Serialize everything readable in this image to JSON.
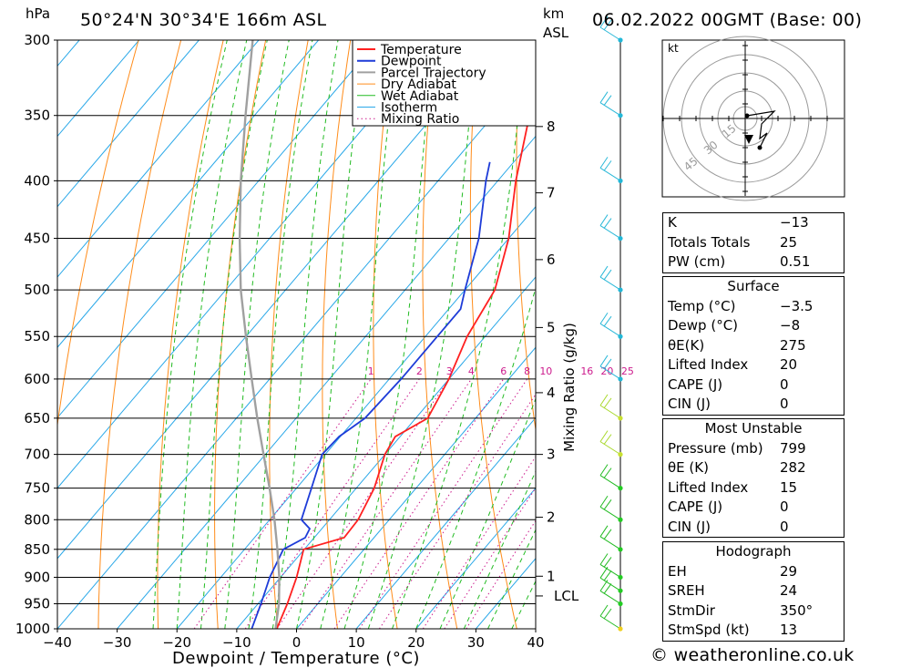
{
  "header": {
    "unit_left": "hPa",
    "location": "50°24'N 30°34'E 166m ASL",
    "unit_km": "km",
    "unit_asl": "ASL",
    "datetime": "06.02.2022 00GMT (Base: 00)"
  },
  "footer": "© weatheronline.co.uk",
  "chart_data": {
    "type": "line",
    "xlabel": "Dewpoint / Temperature (°C)",
    "ylabel": "hPa",
    "xlim": [
      -40,
      40
    ],
    "ylim": [
      1000,
      300
    ],
    "x_ticks": [
      "−40",
      "−30",
      "−20",
      "−10",
      "0",
      "10",
      "20",
      "30",
      "40"
    ],
    "pressure_levels": [
      300,
      350,
      400,
      450,
      500,
      550,
      600,
      650,
      700,
      750,
      800,
      850,
      900,
      950,
      1000
    ],
    "km_ticks": [
      {
        "km": "8",
        "p": 358
      },
      {
        "km": "7",
        "p": 410
      },
      {
        "km": "6",
        "p": 470
      },
      {
        "km": "5",
        "p": 540
      },
      {
        "km": "4",
        "p": 617
      },
      {
        "km": "3",
        "p": 700
      },
      {
        "km": "2",
        "p": 796
      },
      {
        "km": "1",
        "p": 898
      }
    ],
    "lcl": {
      "label": "LCL",
      "p": 935
    },
    "mixing_ratio_axis_label": "Mixing Ratio (g/kg)",
    "mixing_ratio_labels": [
      "1",
      "2",
      "3",
      "4",
      "6",
      "8",
      "10",
      "16",
      "20",
      "25"
    ],
    "legend": [
      "Temperature",
      "Dewpoint",
      "Parcel Trajectory",
      "Dry Adiabat",
      "Wet Adiabat",
      "Isotherm",
      "Mixing Ratio"
    ],
    "colors": {
      "temperature": "#ff2020",
      "dewpoint": "#1e3cd8",
      "parcel": "#a0a0a0",
      "dry_adiabat": "#ff8c1a",
      "wet_adiabat": "#22bb22",
      "isotherm": "#2aa8e8",
      "mixing_ratio": "#cc1a8c"
    },
    "series": [
      {
        "name": "Temperature",
        "points": [
          [
            1000,
            -3.3
          ],
          [
            950,
            -5.1
          ],
          [
            900,
            -7.3
          ],
          [
            850,
            -10.1
          ],
          [
            830,
            -5.0
          ],
          [
            800,
            -5.2
          ],
          [
            750,
            -7.0
          ],
          [
            700,
            -10.0
          ],
          [
            675,
            -10.8
          ],
          [
            650,
            -8.0
          ],
          [
            600,
            -10.0
          ],
          [
            550,
            -13.0
          ],
          [
            500,
            -15.0
          ],
          [
            450,
            -20.0
          ],
          [
            400,
            -27.0
          ],
          [
            350,
            -34.0
          ],
          [
            300,
            -40.5
          ]
        ]
      },
      {
        "name": "Dewpoint",
        "points": [
          [
            1000,
            -7.5
          ],
          [
            950,
            -9.5
          ],
          [
            900,
            -11.8
          ],
          [
            850,
            -13.5
          ],
          [
            830,
            -11.5
          ],
          [
            815,
            -12.0
          ],
          [
            800,
            -14.7
          ],
          [
            750,
            -17.5
          ],
          [
            700,
            -20.5
          ],
          [
            675,
            -20.2
          ],
          [
            650,
            -18.5
          ],
          [
            600,
            -18.0
          ],
          [
            550,
            -18.0
          ],
          [
            520,
            -18.0
          ],
          [
            500,
            -20.0
          ],
          [
            450,
            -25.0
          ],
          [
            400,
            -32.0
          ],
          [
            385,
            -34.0
          ]
        ]
      },
      {
        "name": "Parcel Trajectory",
        "points": [
          [
            1000,
            -3.5
          ],
          [
            950,
            -6.5
          ],
          [
            900,
            -10.2
          ],
          [
            850,
            -14.5
          ],
          [
            800,
            -19.2
          ],
          [
            750,
            -24.5
          ],
          [
            700,
            -30.3
          ],
          [
            650,
            -36.5
          ],
          [
            600,
            -43.0
          ],
          [
            550,
            -50.0
          ],
          [
            500,
            -57.5
          ],
          [
            450,
            -65.0
          ],
          [
            400,
            -73.0
          ],
          [
            350,
            -81.5
          ],
          [
            300,
            -91.0
          ]
        ]
      }
    ],
    "wind_levels": [
      1000,
      950,
      925,
      900,
      850,
      800,
      750,
      700,
      650,
      600,
      550,
      500,
      450,
      400,
      350,
      300
    ]
  },
  "hodograph": {
    "unit": "kt",
    "ring_labels": [
      "15",
      "30",
      "45"
    ]
  },
  "indices": {
    "general": [
      {
        "label": "K",
        "value": "−13"
      },
      {
        "label": "Totals Totals",
        "value": "25"
      },
      {
        "label": "PW (cm)",
        "value": "0.51"
      }
    ],
    "surface_title": "Surface",
    "surface": [
      {
        "label": "Temp (°C)",
        "value": "−3.5"
      },
      {
        "label": "Dewp (°C)",
        "value": "−8"
      },
      {
        "label": "θE(K)",
        "value": "275"
      },
      {
        "label": "Lifted Index",
        "value": "20"
      },
      {
        "label": "CAPE (J)",
        "value": "0"
      },
      {
        "label": "CIN (J)",
        "value": "0"
      }
    ],
    "mu_title": "Most Unstable",
    "most_unstable": [
      {
        "label": "Pressure (mb)",
        "value": "799"
      },
      {
        "label": "θE (K)",
        "value": "282"
      },
      {
        "label": "Lifted Index",
        "value": "15"
      },
      {
        "label": "CAPE (J)",
        "value": "0"
      },
      {
        "label": "CIN (J)",
        "value": "0"
      }
    ],
    "hodo_title": "Hodograph",
    "hodograph": [
      {
        "label": "EH",
        "value": "29"
      },
      {
        "label": "SREH",
        "value": "24"
      },
      {
        "label": "StmDir",
        "value": "350°"
      },
      {
        "label": "StmSpd (kt)",
        "value": "13"
      }
    ]
  }
}
